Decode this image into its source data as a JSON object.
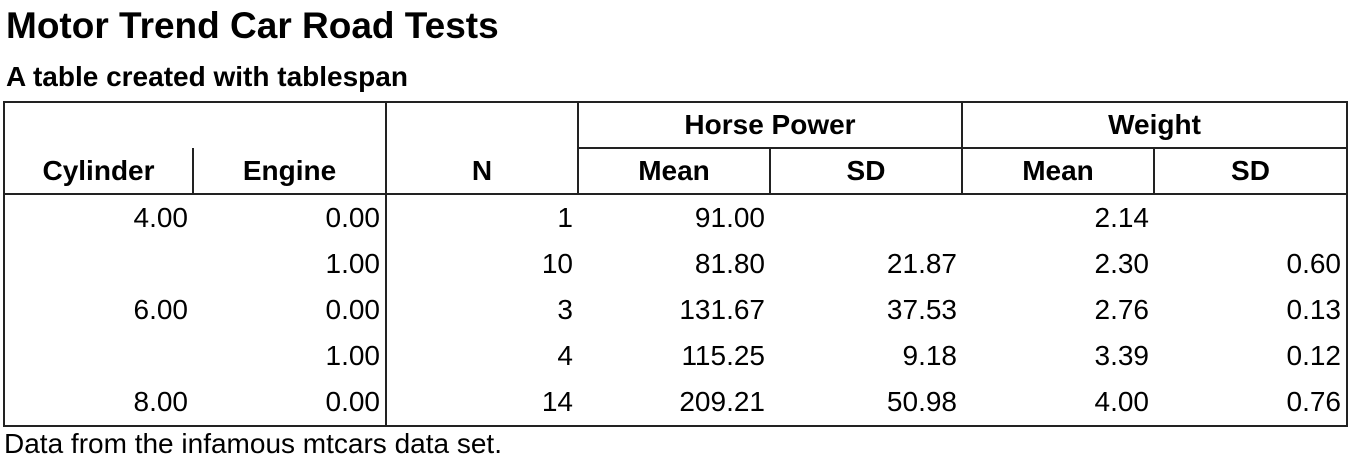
{
  "title": "Motor Trend Car Road Tests",
  "subtitle": "A table created with tablespan",
  "footnote": "Data from the infamous mtcars data set.",
  "header": {
    "groups": [
      "Horse Power",
      "Weight"
    ],
    "columns": [
      "Cylinder",
      "Engine",
      "N",
      "Mean",
      "SD",
      "Mean",
      "SD"
    ]
  },
  "rows": [
    [
      "4.00",
      "0.00",
      "1",
      "91.00",
      "",
      "2.14",
      ""
    ],
    [
      "",
      "1.00",
      "10",
      "81.80",
      "21.87",
      "2.30",
      "0.60"
    ],
    [
      "6.00",
      "0.00",
      "3",
      "131.67",
      "37.53",
      "2.76",
      "0.13"
    ],
    [
      "",
      "1.00",
      "4",
      "115.25",
      "9.18",
      "3.39",
      "0.12"
    ],
    [
      "8.00",
      "0.00",
      "14",
      "209.21",
      "50.98",
      "4.00",
      "0.76"
    ]
  ]
}
